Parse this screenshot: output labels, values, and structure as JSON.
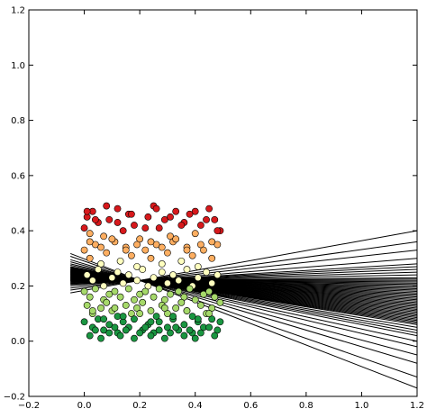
{
  "chart_data": {
    "type": "scatter",
    "title": "",
    "xlabel": "",
    "ylabel": "",
    "xlim": [
      -0.2,
      1.2
    ],
    "ylim": [
      -0.2,
      1.2
    ],
    "grid": false,
    "legend": "none",
    "x_ticks": [
      -0.2,
      0.0,
      0.2,
      0.4,
      0.6,
      0.8,
      1.0,
      1.2
    ],
    "y_ticks": [
      -0.2,
      0.0,
      0.2,
      0.4,
      0.6,
      0.8,
      1.0,
      1.2
    ],
    "x_tick_labels": [
      "−0.2",
      "0.0",
      "0.2",
      "0.4",
      "0.6",
      "0.8",
      "1.0",
      "1.2"
    ],
    "y_tick_labels": [
      "−0.2",
      "0.0",
      "0.2",
      "0.4",
      "0.6",
      "0.8",
      "1.0",
      "1.2"
    ],
    "colors": {
      "axes": "#000000",
      "line": "#000000",
      "point_edge": "#000000",
      "colormap": [
        "#1a9641",
        "#a6d96a",
        "#ffffbf",
        "#fdae61",
        "#d7191c"
      ]
    },
    "point_series": {
      "x": [
        0.0,
        0.01,
        0.02,
        0.03,
        0.05,
        0.07,
        0.09,
        0.12,
        0.14,
        0.16,
        0.18,
        0.2,
        0.23,
        0.25,
        0.27,
        0.29,
        0.31,
        0.33,
        0.36,
        0.38,
        0.4,
        0.42,
        0.45,
        0.47,
        0.49,
        0.0,
        0.02,
        0.04,
        0.06,
        0.08,
        0.11,
        0.13,
        0.15,
        0.17,
        0.19,
        0.22,
        0.24,
        0.26,
        0.28,
        0.3,
        0.32,
        0.35,
        0.37,
        0.39,
        0.41,
        0.43,
        0.46,
        0.48,
        0.01,
        0.03,
        0.05,
        0.07,
        0.1,
        0.12,
        0.14,
        0.16,
        0.19,
        0.21,
        0.23,
        0.25,
        0.28,
        0.3,
        0.32,
        0.34,
        0.37,
        0.39,
        0.41,
        0.44,
        0.46,
        0.48,
        0.0,
        0.02,
        0.04,
        0.07,
        0.09,
        0.11,
        0.13,
        0.16,
        0.18,
        0.2,
        0.22,
        0.25,
        0.27,
        0.29,
        0.31,
        0.34,
        0.36,
        0.38,
        0.4,
        0.43,
        0.45,
        0.47,
        0.01,
        0.03,
        0.06,
        0.08,
        0.1,
        0.12,
        0.15,
        0.17,
        0.19,
        0.21,
        0.24,
        0.26,
        0.28,
        0.3,
        0.33,
        0.35,
        0.37,
        0.39,
        0.42,
        0.44,
        0.46,
        0.49,
        0.0,
        0.03,
        0.05,
        0.07,
        0.09,
        0.12,
        0.14,
        0.16,
        0.18,
        0.21,
        0.23,
        0.25,
        0.27,
        0.3,
        0.32,
        0.34,
        0.36,
        0.39,
        0.41,
        0.43,
        0.46,
        0.48,
        0.02,
        0.04,
        0.06,
        0.09,
        0.11,
        0.13,
        0.15,
        0.18,
        0.2,
        0.22,
        0.24,
        0.27,
        0.29,
        0.31,
        0.33,
        0.36,
        0.38,
        0.4,
        0.42,
        0.45,
        0.47,
        0.01,
        0.04,
        0.08,
        0.12,
        0.17,
        0.22,
        0.26,
        0.31,
        0.35,
        0.4,
        0.44,
        0.48,
        0.02,
        0.06,
        0.1,
        0.15,
        0.19,
        0.24,
        0.28,
        0.33,
        0.37,
        0.42,
        0.46,
        0.03,
        0.07,
        0.11,
        0.14,
        0.2,
        0.24,
        0.29,
        0.32,
        0.37,
        0.41,
        0.45,
        0.49
      ],
      "y": [
        0.41,
        0.45,
        0.39,
        0.47,
        0.43,
        0.38,
        0.44,
        0.48,
        0.4,
        0.46,
        0.42,
        0.37,
        0.45,
        0.49,
        0.41,
        0.44,
        0.38,
        0.47,
        0.43,
        0.46,
        0.39,
        0.42,
        0.48,
        0.44,
        0.4,
        0.33,
        0.3,
        0.35,
        0.28,
        0.32,
        0.36,
        0.29,
        0.34,
        0.31,
        0.27,
        0.33,
        0.3,
        0.35,
        0.28,
        0.32,
        0.36,
        0.29,
        0.34,
        0.31,
        0.27,
        0.33,
        0.3,
        0.35,
        0.24,
        0.22,
        0.26,
        0.2,
        0.23,
        0.25,
        0.21,
        0.24,
        0.22,
        0.26,
        0.2,
        0.23,
        0.25,
        0.21,
        0.24,
        0.22,
        0.26,
        0.2,
        0.23,
        0.25,
        0.21,
        0.24,
        0.18,
        0.16,
        0.19,
        0.15,
        0.17,
        0.18,
        0.16,
        0.19,
        0.15,
        0.17,
        0.18,
        0.16,
        0.19,
        0.15,
        0.17,
        0.18,
        0.16,
        0.19,
        0.15,
        0.17,
        0.18,
        0.16,
        0.13,
        0.1,
        0.12,
        0.14,
        0.11,
        0.09,
        0.13,
        0.1,
        0.12,
        0.14,
        0.11,
        0.09,
        0.13,
        0.1,
        0.12,
        0.14,
        0.11,
        0.09,
        0.13,
        0.1,
        0.12,
        0.14,
        0.07,
        0.05,
        0.08,
        0.04,
        0.06,
        0.03,
        0.07,
        0.05,
        0.08,
        0.04,
        0.06,
        0.03,
        0.07,
        0.05,
        0.08,
        0.04,
        0.06,
        0.03,
        0.07,
        0.05,
        0.08,
        0.04,
        0.02,
        0.04,
        0.01,
        0.03,
        0.05,
        0.02,
        0.04,
        0.01,
        0.03,
        0.05,
        0.02,
        0.04,
        0.01,
        0.03,
        0.05,
        0.02,
        0.04,
        0.01,
        0.03,
        0.05,
        0.02,
        0.47,
        0.44,
        0.49,
        0.43,
        0.46,
        0.41,
        0.48,
        0.45,
        0.42,
        0.47,
        0.44,
        0.4,
        0.36,
        0.34,
        0.37,
        0.33,
        0.35,
        0.36,
        0.34,
        0.37,
        0.33,
        0.35,
        0.36,
        0.11,
        0.08,
        0.12,
        0.09,
        0.1,
        0.07,
        0.12,
        0.09,
        0.11,
        0.08,
        0.1,
        0.07
      ]
    },
    "line_series": {
      "origin": [
        0.2,
        0.22
      ],
      "end_x": 1.2,
      "end_y": [
        -0.17,
        -0.13,
        -0.08,
        -0.05,
        -0.02,
        0.0,
        0.02,
        0.03,
        0.04,
        0.05,
        0.06,
        0.065,
        0.07,
        0.075,
        0.08,
        0.085,
        0.09,
        0.095,
        0.1,
        0.105,
        0.11,
        0.115,
        0.12,
        0.125,
        0.13,
        0.135,
        0.14,
        0.145,
        0.15,
        0.155,
        0.16,
        0.165,
        0.17,
        0.175,
        0.18,
        0.185,
        0.19,
        0.195,
        0.2,
        0.205,
        0.21,
        0.215,
        0.22,
        0.225,
        0.23,
        0.24,
        0.25,
        0.26,
        0.27,
        0.28,
        0.3,
        0.33,
        0.36,
        0.4
      ]
    }
  }
}
